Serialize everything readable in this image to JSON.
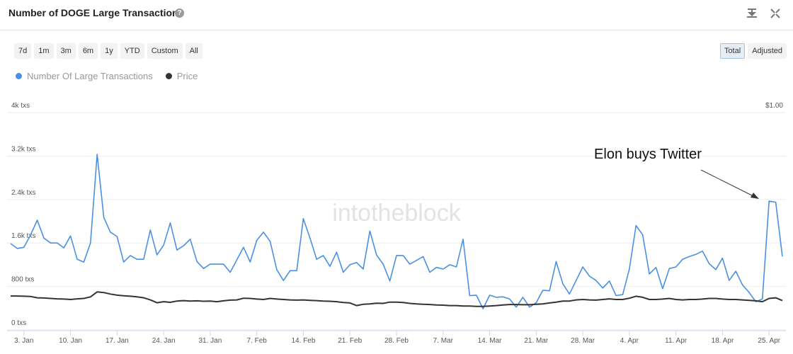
{
  "header": {
    "title": "Number of DOGE Large Transactions"
  },
  "range_buttons": [
    "7d",
    "1m",
    "3m",
    "6m",
    "1y",
    "YTD",
    "Custom",
    "All"
  ],
  "mode_buttons": [
    "Total",
    "Adjusted"
  ],
  "active_mode": "Total",
  "watermark": "intotheblock",
  "chart_data": {
    "type": "line",
    "annotation": "Elon buys Twitter",
    "categories": [
      null,
      null,
      "3. Jan",
      null,
      null,
      null,
      null,
      null,
      null,
      "10. Jan",
      null,
      null,
      null,
      null,
      null,
      null,
      "17. Jan",
      null,
      null,
      null,
      null,
      null,
      null,
      "24. Jan",
      null,
      null,
      null,
      null,
      null,
      null,
      "31. Jan",
      null,
      null,
      null,
      null,
      null,
      null,
      "7. Feb",
      null,
      null,
      null,
      null,
      null,
      null,
      "14. Feb",
      null,
      null,
      null,
      null,
      null,
      null,
      "21. Feb",
      null,
      null,
      null,
      null,
      null,
      null,
      "28. Feb",
      null,
      null,
      null,
      null,
      null,
      null,
      "7. Mar",
      null,
      null,
      null,
      null,
      null,
      null,
      "14. Mar",
      null,
      null,
      null,
      null,
      null,
      null,
      "21. Mar",
      null,
      null,
      null,
      null,
      null,
      null,
      "28. Mar",
      null,
      null,
      null,
      null,
      null,
      null,
      "4. Apr",
      null,
      null,
      null,
      null,
      null,
      null,
      "11. Apr",
      null,
      null,
      null,
      null,
      null,
      null,
      "18. Apr",
      null,
      null,
      null,
      null,
      null,
      null,
      "25. Apr",
      null,
      null
    ],
    "series": [
      {
        "name": "Number Of Large Transactions",
        "color": "#4a90e2",
        "axis": "y",
        "values": [
          1590,
          1500,
          1520,
          1750,
          2020,
          1690,
          1600,
          1600,
          1510,
          1730,
          1300,
          1250,
          1600,
          3230,
          2070,
          1800,
          1720,
          1250,
          1370,
          1300,
          1300,
          1840,
          1380,
          1560,
          1970,
          1470,
          1550,
          1670,
          1260,
          1130,
          1210,
          1210,
          1210,
          1060,
          1290,
          1520,
          1250,
          1650,
          1800,
          1630,
          1110,
          910,
          1090,
          1090,
          2050,
          1690,
          1300,
          1370,
          1170,
          1430,
          1060,
          1200,
          1240,
          1120,
          1820,
          1380,
          1210,
          900,
          1370,
          1370,
          1210,
          1280,
          1350,
          1060,
          1150,
          1120,
          1200,
          1160,
          1670,
          630,
          640,
          390,
          640,
          600,
          610,
          570,
          420,
          600,
          420,
          500,
          730,
          720,
          1260,
          850,
          660,
          910,
          1160,
          990,
          910,
          770,
          900,
          630,
          650,
          1120,
          1920,
          1750,
          1030,
          1150,
          760,
          1130,
          1160,
          1300,
          1350,
          1390,
          1450,
          1220,
          1110,
          1320,
          910,
          1080,
          830,
          690,
          520,
          570,
          2370,
          2350,
          1350
        ]
      },
      {
        "name": "Price",
        "color": "#333333",
        "axis": "y2",
        "values": [
          0.156,
          0.156,
          0.155,
          0.154,
          0.148,
          0.147,
          0.145,
          0.143,
          0.142,
          0.14,
          0.143,
          0.145,
          0.152,
          0.175,
          0.172,
          0.165,
          0.16,
          0.157,
          0.155,
          0.152,
          0.148,
          0.138,
          0.125,
          0.13,
          0.127,
          0.133,
          0.135,
          0.133,
          0.134,
          0.132,
          0.133,
          0.13,
          0.134,
          0.137,
          0.138,
          0.146,
          0.145,
          0.142,
          0.14,
          0.145,
          0.142,
          0.14,
          0.138,
          0.137,
          0.138,
          0.136,
          0.135,
          0.133,
          0.132,
          0.13,
          0.126,
          0.124,
          0.112,
          0.118,
          0.12,
          0.123,
          0.122,
          0.128,
          0.128,
          0.126,
          0.122,
          0.12,
          0.118,
          0.117,
          0.115,
          0.114,
          0.112,
          0.112,
          0.11,
          0.11,
          0.108,
          0.108,
          0.11,
          0.112,
          0.115,
          0.117,
          0.117,
          0.116,
          0.116,
          0.118,
          0.12,
          0.124,
          0.128,
          0.133,
          0.133,
          0.138,
          0.14,
          0.138,
          0.137,
          0.14,
          0.143,
          0.14,
          0.14,
          0.146,
          0.155,
          0.15,
          0.14,
          0.14,
          0.142,
          0.145,
          0.14,
          0.138,
          0.14,
          0.14,
          0.142,
          0.145,
          0.145,
          0.142,
          0.14,
          0.14,
          0.138,
          0.136,
          0.134,
          0.13,
          0.145,
          0.148,
          0.135
        ]
      }
    ],
    "ylim": [
      0,
      4000
    ],
    "yticks": [
      {
        "value": 0,
        "label": "0 txs"
      },
      {
        "value": 800,
        "label": "800 txs"
      },
      {
        "value": 1600,
        "label": "1.6k txs"
      },
      {
        "value": 2400,
        "label": "2.4k txs"
      },
      {
        "value": 3200,
        "label": "3.2k txs"
      },
      {
        "value": 4000,
        "label": "4k txs"
      }
    ],
    "y2lim": [
      0,
      1
    ],
    "y2ticks": [
      {
        "value": 1,
        "label": "$1.00"
      }
    ],
    "grid": true
  }
}
